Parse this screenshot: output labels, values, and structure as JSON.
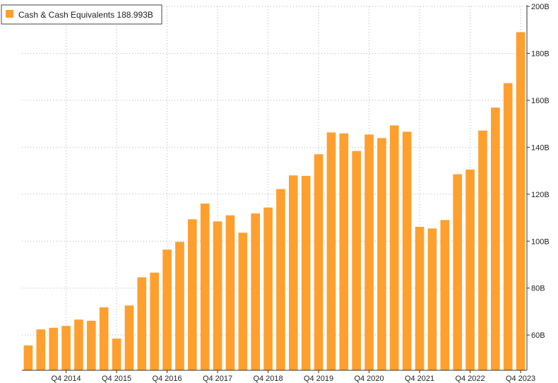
{
  "colors": {
    "bar": "#ff9f2e",
    "grid": "#b3b3b3",
    "axis": "#333333",
    "legend_border": "#444444",
    "background": "#ffffff"
  },
  "legend": {
    "label": "Cash & Cash Equivalents",
    "value": "188.993B"
  },
  "chart_data": {
    "type": "bar",
    "title": "",
    "xlabel": "",
    "ylabel": "",
    "ylim": [
      45,
      200
    ],
    "y_ticks": [
      60,
      80,
      100,
      120,
      140,
      160,
      180,
      200
    ],
    "y_tick_labels": [
      "60B",
      "80B",
      "100B",
      "120B",
      "140B",
      "160B",
      "180B",
      "200B"
    ],
    "y_axis_side": "right",
    "grid": true,
    "legend_position": "top-left",
    "x_tick_labels": [
      {
        "index": 3,
        "label": "Q4 2014"
      },
      {
        "index": 7,
        "label": "Q4 2015"
      },
      {
        "index": 11,
        "label": "Q4 2016"
      },
      {
        "index": 15,
        "label": "Q4 2017"
      },
      {
        "index": 19,
        "label": "Q4 2018"
      },
      {
        "index": 23,
        "label": "Q4 2019"
      },
      {
        "index": 27,
        "label": "Q4 2020"
      },
      {
        "index": 31,
        "label": "Q4 2021"
      },
      {
        "index": 35,
        "label": "Q4 2022"
      },
      {
        "index": 39,
        "label": "Q4 2023"
      }
    ],
    "series": [
      {
        "name": "Cash & Cash Equivalents",
        "values": [
          55.6,
          62.4,
          63.1,
          63.9,
          66.6,
          66.1,
          71.8,
          58.5,
          72.6,
          84.6,
          86.6,
          96.4,
          99.7,
          109.3,
          116.0,
          108.4,
          111.0,
          103.6,
          111.8,
          114.3,
          122.2,
          128.0,
          127.8,
          137.0,
          146.3,
          145.9,
          138.4,
          145.4,
          143.9,
          149.3,
          146.6,
          106.1,
          105.4,
          109.0,
          128.5,
          130.5,
          147.1,
          156.9,
          167.3,
          189.0
        ]
      }
    ]
  }
}
